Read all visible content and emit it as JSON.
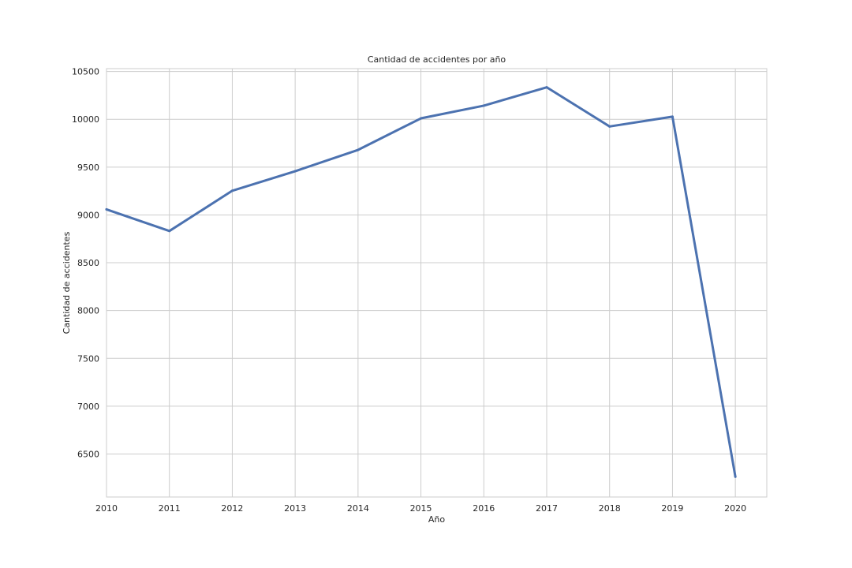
{
  "chart_data": {
    "type": "line",
    "title": "Cantidad de accidentes por año",
    "xlabel": "Año",
    "ylabel": "Cantidad de accidentes",
    "x": [
      2010,
      2011,
      2012,
      2013,
      2014,
      2015,
      2016,
      2017,
      2018,
      2019,
      2020
    ],
    "series": [
      {
        "values": [
          9058,
          8832,
          9253,
          9457,
          9680,
          10010,
          10143,
          10335,
          9925,
          10028,
          6262
        ]
      }
    ],
    "xlim": [
      2010,
      2020.5
    ],
    "ylim": [
      6050,
      10530
    ],
    "xticks": [
      "2010",
      "2011",
      "2012",
      "2013",
      "2014",
      "2015",
      "2016",
      "2017",
      "2018",
      "2019",
      "2020"
    ],
    "yticks": [
      "6500",
      "7000",
      "7500",
      "8000",
      "8500",
      "9000",
      "9500",
      "10000",
      "10500"
    ],
    "grid": true,
    "line_color": "#4c72b0",
    "grid_color": "#cccccc",
    "axes_edge_color": "#cccccc"
  }
}
